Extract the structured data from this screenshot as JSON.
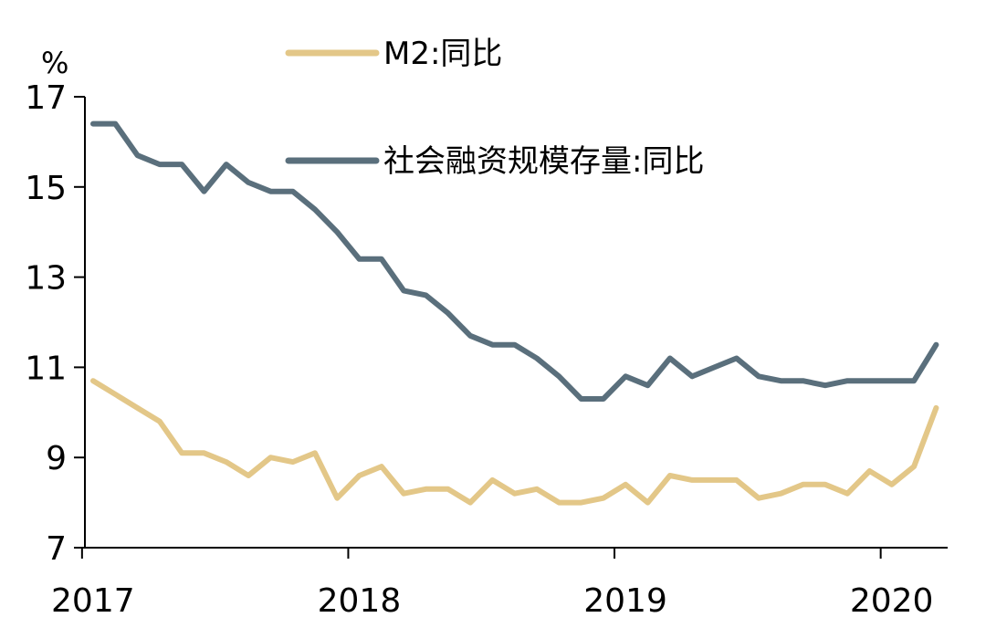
{
  "chart_data": {
    "type": "line",
    "unit_label": "%",
    "ylim": [
      7,
      17
    ],
    "y_ticks": [
      "7",
      "9",
      "11",
      "13",
      "15",
      "17"
    ],
    "x_tick_labels": [
      "2017",
      "2018",
      "2019",
      "2020"
    ],
    "grid": false,
    "legend_position": "top-center",
    "x": [
      "2017-01",
      "2017-02",
      "2017-03",
      "2017-04",
      "2017-05",
      "2017-06",
      "2017-07",
      "2017-08",
      "2017-09",
      "2017-10",
      "2017-11",
      "2017-12",
      "2018-01",
      "2018-02",
      "2018-03",
      "2018-04",
      "2018-05",
      "2018-06",
      "2018-07",
      "2018-08",
      "2018-09",
      "2018-10",
      "2018-11",
      "2018-12",
      "2019-01",
      "2019-02",
      "2019-03",
      "2019-04",
      "2019-05",
      "2019-06",
      "2019-07",
      "2019-08",
      "2019-09",
      "2019-10",
      "2019-11",
      "2019-12",
      "2020-01",
      "2020-02",
      "2020-03"
    ],
    "series": [
      {
        "name": "M2:同比",
        "color": "#e3c788",
        "values": [
          10.7,
          10.4,
          10.1,
          9.8,
          9.1,
          9.1,
          8.9,
          8.6,
          9.0,
          8.9,
          9.1,
          8.1,
          8.6,
          8.8,
          8.2,
          8.3,
          8.3,
          8.0,
          8.5,
          8.2,
          8.3,
          8.0,
          8.0,
          8.1,
          8.4,
          8.0,
          8.6,
          8.5,
          8.5,
          8.5,
          8.1,
          8.2,
          8.4,
          8.4,
          8.2,
          8.7,
          8.4,
          8.8,
          10.1
        ]
      },
      {
        "name": "社会融资规模存量:同比",
        "color": "#5a6f7c",
        "values": [
          16.4,
          16.4,
          15.7,
          15.5,
          15.5,
          14.9,
          15.5,
          15.1,
          14.9,
          14.9,
          14.5,
          14.0,
          13.4,
          13.4,
          12.7,
          12.6,
          12.2,
          11.7,
          11.5,
          11.5,
          11.2,
          10.8,
          10.3,
          10.3,
          10.8,
          10.6,
          11.2,
          10.8,
          11.0,
          11.2,
          10.8,
          10.7,
          10.7,
          10.6,
          10.7,
          10.7,
          10.7,
          10.7,
          11.5
        ]
      }
    ]
  }
}
